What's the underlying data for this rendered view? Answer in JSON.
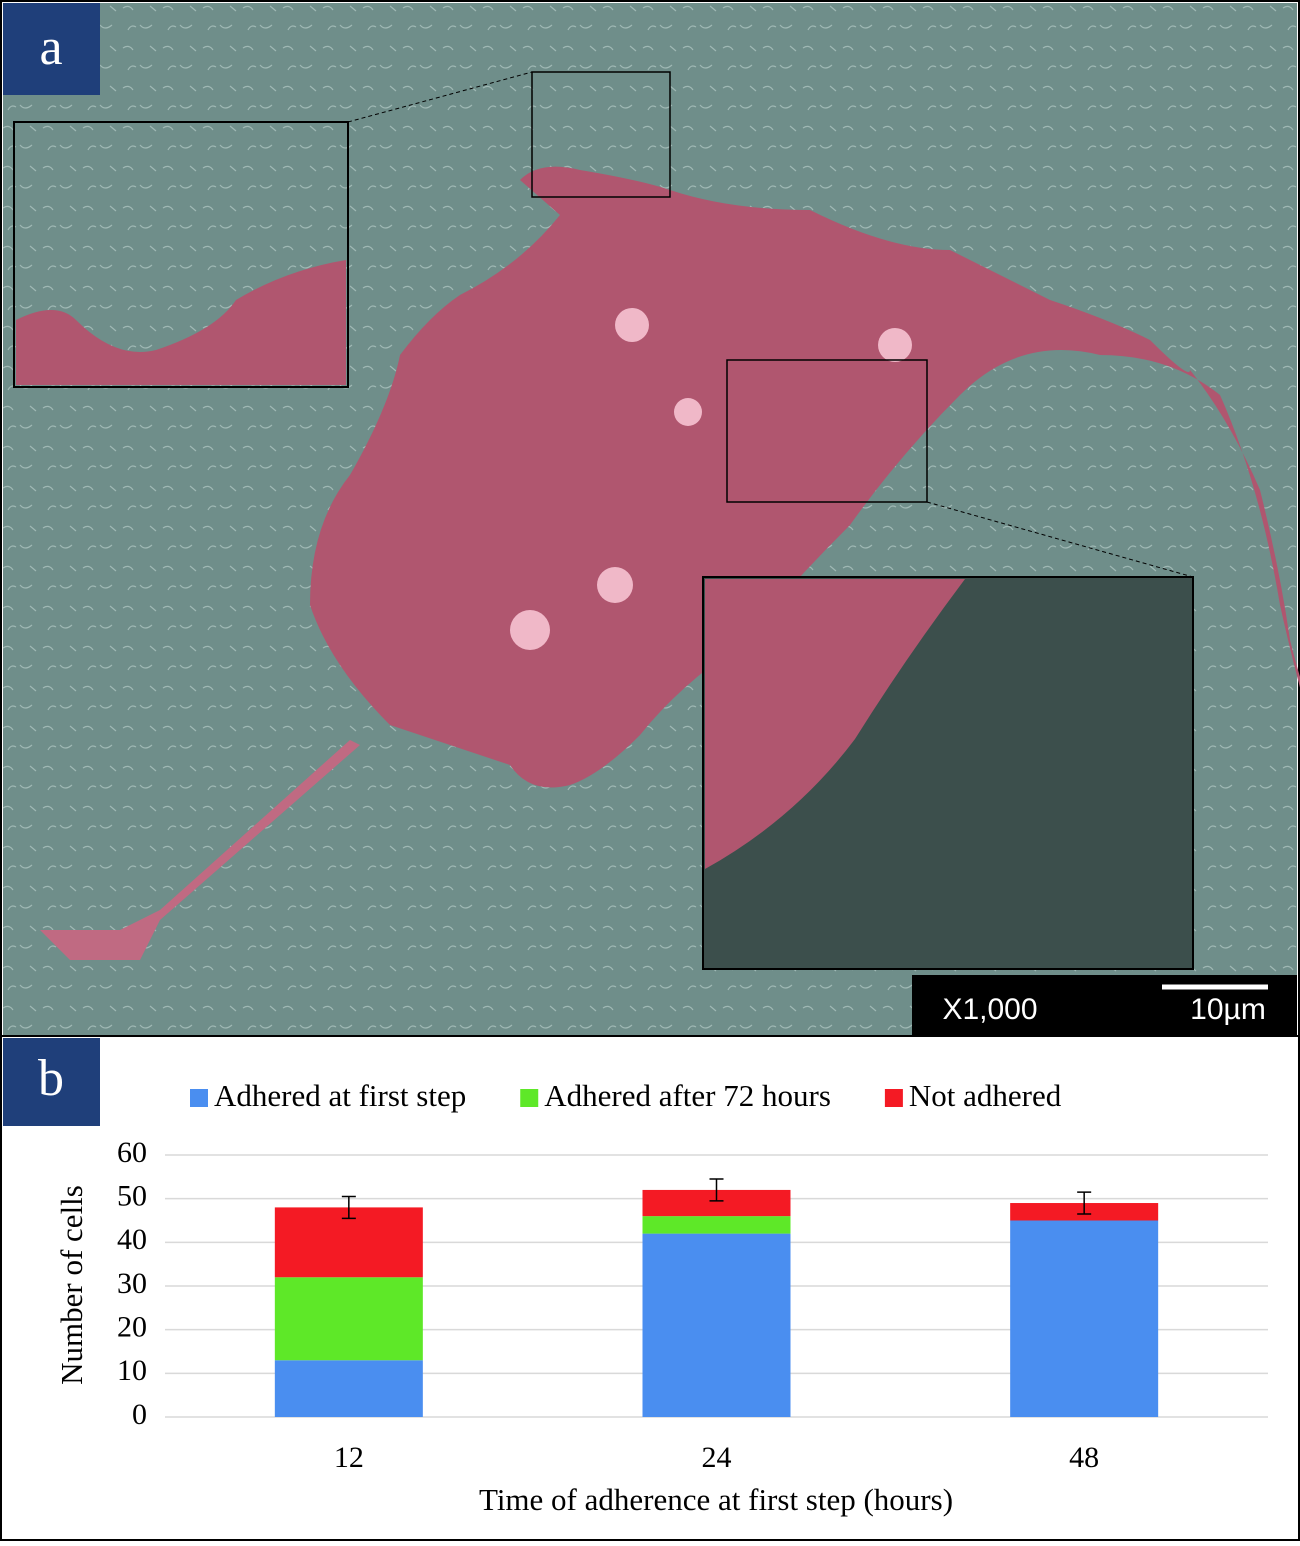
{
  "panel_a": {
    "label": "a",
    "magnification": "X1,000",
    "scale_bar": "10µm"
  },
  "chart_data": {
    "type": "bar",
    "stacked": true,
    "panel_label": "b",
    "xlabel": "Time of adherence at first step (hours)",
    "ylabel": "Number of cells",
    "categories": [
      "12",
      "24",
      "48"
    ],
    "series": [
      {
        "name": "Adhered at first step",
        "color": "#4a8ef0",
        "values": [
          13,
          42,
          45
        ]
      },
      {
        "name": "Adhered after 72 hours",
        "color": "#5ee828",
        "values": [
          19,
          4,
          0
        ]
      },
      {
        "name": "Not adhered",
        "color": "#f41a24",
        "values": [
          16,
          6,
          4
        ]
      }
    ],
    "errors": [
      2.5,
      2.5,
      2.5
    ],
    "ylim": [
      0,
      60
    ],
    "yticks": [
      0,
      10,
      20,
      30,
      40,
      50,
      60
    ],
    "grid": true,
    "legend": "top"
  }
}
